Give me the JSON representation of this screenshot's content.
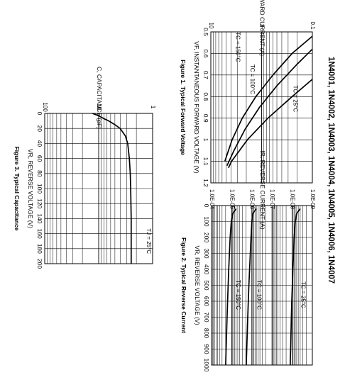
{
  "header": {
    "title": "1N4001, 1N4002, 1N4003, 1N4004, 1N4005, 1N4006, 1N4007"
  },
  "chart_data": [
    {
      "id": "fig1",
      "type": "line",
      "title": "Figure 1. Typical Forward Voltage",
      "xlabel": "VF, INSTANTANEOUS FORWARD VOLTAGE (V)",
      "ylabel": "IF, FORWARD CURRENT (A)",
      "xlim": [
        0.5,
        1.2
      ],
      "ylim": [
        0.1,
        10
      ],
      "yscale": "log",
      "grid": true,
      "x_ticks": [
        "0.5",
        "0.6",
        "0.7",
        "0.8",
        "0.9",
        "1",
        "1.1",
        "1.2"
      ],
      "y_ticks": [
        "0.1",
        "1",
        "10"
      ],
      "series": [
        {
          "name": "TC = 150°C",
          "x": [
            0.52,
            0.6,
            0.7,
            0.8,
            0.9,
            1.0,
            1.1
          ],
          "y": [
            0.1,
            0.25,
            0.6,
            1.3,
            2.4,
            3.8,
            5.3
          ]
        },
        {
          "name": "TC = 100°C",
          "x": [
            0.58,
            0.65,
            0.75,
            0.85,
            0.95,
            1.05,
            1.12
          ],
          "y": [
            0.1,
            0.2,
            0.5,
            1.1,
            2.1,
            3.5,
            4.8
          ]
        },
        {
          "name": "TC = 25°C",
          "x": [
            0.72,
            0.8,
            0.9,
            1.0,
            1.1,
            1.13
          ],
          "y": [
            0.1,
            0.25,
            0.75,
            1.9,
            3.9,
            4.5
          ]
        }
      ]
    },
    {
      "id": "fig2",
      "type": "line",
      "title": "Figure 2. Typical Reverse Current",
      "xlabel": "VR, REVERSE VOLTAGE (V)",
      "ylabel": "IR, REVERSE CURRENT (A)",
      "xlim": [
        0,
        1000
      ],
      "ylim": [
        1e-09,
        0.0001
      ],
      "yscale": "log",
      "grid": true,
      "x_ticks": [
        "0",
        "100",
        "200",
        "300",
        "400",
        "500",
        "600",
        "700",
        "800",
        "900",
        "1000"
      ],
      "y_ticks": [
        "1.0E-09",
        "1.0E-08",
        "1.0E-07",
        "1.0E-06",
        "1.0E-05",
        "1.0E-04"
      ],
      "series": [
        {
          "name": "TC = 150°C",
          "x": [
            20,
            50,
            100,
            200,
            300,
            400,
            500,
            600,
            700,
            800,
            900,
            1000
          ],
          "y": [
            6e-06,
            9e-06,
            1.05e-05,
            1.2e-05,
            1.3e-05,
            1.4e-05,
            1.5e-05,
            1.6e-05,
            1.7e-05,
            1.8e-05,
            1.9e-05,
            2e-05
          ]
        },
        {
          "name": "TC = 100°C",
          "x": [
            20,
            50,
            100,
            200,
            300,
            400,
            500,
            600,
            700,
            800,
            900,
            1000
          ],
          "y": [
            6e-07,
            9e-07,
            1e-06,
            1.1e-06,
            1.2e-06,
            1.3e-06,
            1.4e-06,
            1.5e-06,
            1.6e-06,
            1.7e-06,
            1.8e-06,
            1.9e-06
          ]
        },
        {
          "name": "TC = 25°C",
          "x": [
            20,
            50,
            100,
            200,
            300,
            400,
            500,
            600,
            700,
            800,
            900,
            1000
          ],
          "y": [
            4e-09,
            6e-09,
            7e-09,
            8e-09,
            8.6e-09,
            9.2e-09,
            9.8e-09,
            1.05e-08,
            1.1e-08,
            1.15e-08,
            1.2e-08,
            1.25e-08
          ]
        }
      ]
    },
    {
      "id": "fig3",
      "type": "line",
      "title": "Figure 3. Typical Capacitance",
      "xlabel": "VR, REVERSE VOLTAGE (V)",
      "ylabel": "C, CAPACITANCE (pF)",
      "xlim": [
        0,
        200
      ],
      "ylim": [
        1,
        100
      ],
      "yscale": "log",
      "grid": true,
      "x_ticks": [
        "0",
        "20",
        "40",
        "60",
        "80",
        "100",
        "120",
        "140",
        "160",
        "180",
        "200"
      ],
      "y_ticks": [
        "1",
        "10",
        "100"
      ],
      "series": [
        {
          "name": "TJ = 25°C",
          "x": [
            0,
            1,
            2,
            4,
            7,
            10,
            15,
            20,
            30,
            40,
            60,
            80,
            100,
            140,
            200
          ],
          "y": [
            13,
            12,
            11,
            9.5,
            8,
            6.5,
            5,
            4,
            3.2,
            2.9,
            2.7,
            2.6,
            2.55,
            2.5,
            2.5
          ]
        }
      ]
    }
  ]
}
